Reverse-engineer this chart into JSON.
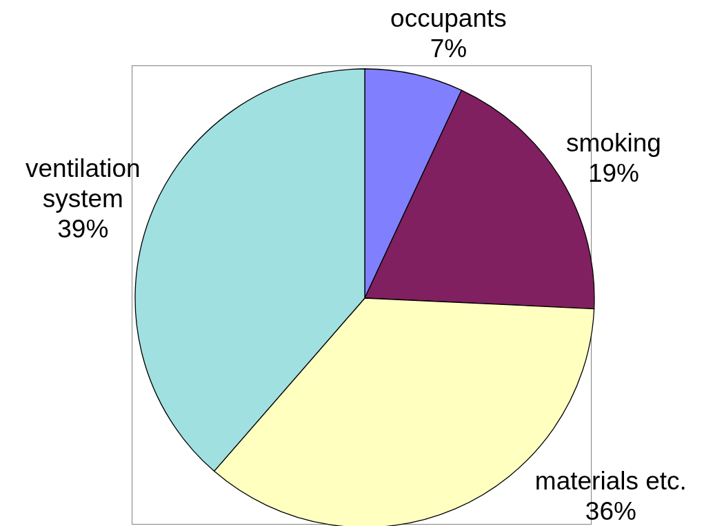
{
  "chart_data": {
    "type": "pie",
    "categories": [
      "occupants",
      "smoking",
      "materials etc.",
      "ventilation system"
    ],
    "values": [
      7,
      19,
      36,
      39
    ],
    "colors": [
      "#8080ff",
      "#802060",
      "#ffffc0",
      "#a0e0e0"
    ],
    "value_labels": [
      "7%",
      "19%",
      "36%",
      "39%"
    ]
  }
}
